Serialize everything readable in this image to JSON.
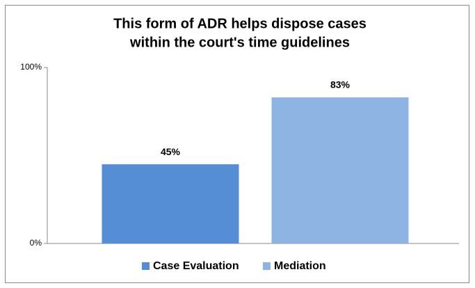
{
  "chart_data": {
    "type": "bar",
    "title": [
      "This form of ADR helps dispose cases",
      "within the court's time guidelines"
    ],
    "categories": [
      null
    ],
    "series": [
      {
        "name": "Case Evaluation",
        "color": "#558ed5",
        "values": [
          45
        ],
        "value_labels": [
          "45%"
        ]
      },
      {
        "name": "Mediation",
        "color": "#8eb4e3",
        "values": [
          83
        ],
        "value_labels": [
          "83%"
        ]
      }
    ],
    "ylim": [
      0,
      100
    ],
    "yticks": [
      {
        "value": 0,
        "label": "0%"
      },
      {
        "value": 100,
        "label": "100%"
      }
    ],
    "grid": false,
    "legend": "bottom"
  }
}
